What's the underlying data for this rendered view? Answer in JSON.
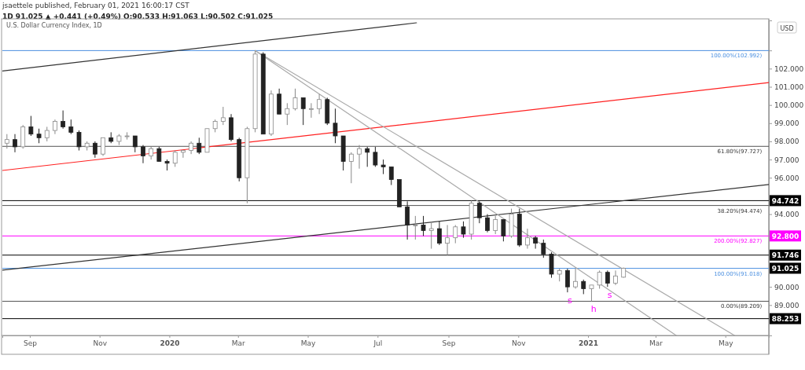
{
  "chart_data": {
    "type": "candlestick",
    "title": "U.S. Dollar Currency Index, 1D",
    "subtitle": "1D 91.025 ▲ +0.441 (+0.49%) O:90.533 H:91.063 L:90.502 C:91.025",
    "ylabel": "USD",
    "annotations": [
      "jsaettele published, February 01, 2021 16:00:17 CST",
      {
        "text": "100.00%(102.992)",
        "x": "2021-06-02",
        "y": 102.992
      },
      {
        "text": "61.80%(97.727)",
        "x": "2021-06-02",
        "y": 97.727
      },
      {
        "text": "38.20%(94.474)",
        "x": "2021-06-02",
        "y": 94.474
      },
      {
        "text": "200.00%(92.827)",
        "x": "2021-06-02",
        "y": 92.827
      },
      {
        "text": "100.00%(91.018)",
        "x": "2021-06-02",
        "y": 91.018
      },
      {
        "text": "0.00%(89.209)",
        "x": "2021-06-02",
        "y": 89.209
      },
      {
        "text": "s",
        "x": "2020-12-16",
        "y": 89.7
      },
      {
        "text": "h",
        "x": "2021-01-06",
        "y": 89.209
      },
      {
        "text": "s",
        "x": "2021-01-20",
        "y": 90.0
      },
      {
        "text": "91.025",
        "x": "2021-06-08",
        "y": 91.025
      }
    ],
    "xlim": [
      "2019-08-08",
      "2021-06-08"
    ],
    "xticks": [
      {
        "value": "2019-09-01",
        "label": "Sep"
      },
      {
        "value": "2019-11-01",
        "label": "Nov"
      },
      {
        "value": "2020-01-01",
        "label": "2020"
      },
      {
        "value": "2020-03-01",
        "label": "Mar"
      },
      {
        "value": "2020-05-01",
        "label": "May"
      },
      {
        "value": "2020-07-01",
        "label": "Jul"
      },
      {
        "value": "2020-09-01",
        "label": "Sep"
      },
      {
        "value": "2020-11-01",
        "label": "Nov"
      },
      {
        "value": "2021-01-01",
        "label": "2021"
      },
      {
        "value": "2021-03-01",
        "label": "Mar"
      },
      {
        "value": "2021-05-01",
        "label": "May"
      }
    ],
    "ylim": [
      87.33,
      104.65
    ],
    "yticks": [
      {
        "value": 89,
        "label": "89.000"
      },
      {
        "value": 90,
        "label": "90.000"
      },
      {
        "value": 91,
        "label": null
      },
      {
        "value": 92,
        "label": null
      },
      {
        "value": 93,
        "label": null
      },
      {
        "value": 94,
        "label": "94.000"
      },
      {
        "value": 95,
        "label": null
      },
      {
        "value": 96,
        "label": "96.000"
      },
      {
        "value": 97,
        "label": "97.000"
      },
      {
        "value": 98,
        "label": "98.000"
      },
      {
        "value": 99,
        "label": "99.000"
      },
      {
        "value": 100,
        "label": "100.000"
      },
      {
        "value": 101,
        "label": "101.000"
      },
      {
        "value": 102,
        "label": "102.000"
      },
      {
        "value": 103,
        "label": null
      }
    ],
    "ref_lines": [
      {
        "axis": "y",
        "value": 102.992,
        "color": "#4a8fe0"
      },
      {
        "axis": "y",
        "value": 97.727,
        "color": "#555555"
      },
      {
        "axis": "y",
        "value": 94.474,
        "color": "#555555"
      },
      {
        "axis": "y",
        "value": 91.018,
        "color": "#4a8fe0"
      },
      {
        "axis": "y",
        "value": 89.209,
        "color": "#555555"
      },
      {
        "axis": "y",
        "value": 94.742,
        "label": "94.742",
        "color": "#000000"
      },
      {
        "axis": "y",
        "value": 92.8,
        "label": "92.800",
        "color": "#ff00ff"
      },
      {
        "axis": "y",
        "value": 91.746,
        "label": "91.746",
        "color": "#000000"
      },
      {
        "axis": "y",
        "value": 88.253,
        "label": "88.253",
        "color": "#000000"
      }
    ],
    "series": [
      {
        "type": "line",
        "color": "#333333",
        "x": [
          "2019-08-08",
          "2020-08-04"
        ],
        "values": [
          101.87,
          104.52
        ]
      },
      {
        "type": "line",
        "color": "#ff2020",
        "x": [
          "2019-08-08",
          "2021-06-08"
        ],
        "values": [
          96.4,
          101.23
        ]
      },
      {
        "type": "line",
        "color": "#333333",
        "x": [
          "2019-08-08",
          "2021-06-08"
        ],
        "values": [
          90.92,
          95.63
        ]
      },
      {
        "type": "line",
        "color": "#aaaaaa",
        "x": [
          "2020-03-16",
          "2021-05-09"
        ],
        "values": [
          102.99,
          87.33
        ]
      },
      {
        "type": "line",
        "color": "#aaaaaa",
        "x": [
          "2020-03-16",
          "2021-03-19"
        ],
        "values": [
          102.99,
          87.33
        ]
      }
    ],
    "x": [
      "2019-08-12",
      "2019-08-19",
      "2019-08-26",
      "2019-09-02",
      "2019-09-09",
      "2019-09-16",
      "2019-09-23",
      "2019-09-30",
      "2019-10-07",
      "2019-10-14",
      "2019-10-21",
      "2019-10-28",
      "2019-11-04",
      "2019-11-11",
      "2019-11-18",
      "2019-11-25",
      "2019-12-02",
      "2019-12-09",
      "2019-12-16",
      "2019-12-23",
      "2019-12-30",
      "2020-01-06",
      "2020-01-13",
      "2020-01-20",
      "2020-01-27",
      "2020-02-03",
      "2020-02-10",
      "2020-02-17",
      "2020-02-24",
      "2020-03-02",
      "2020-03-09",
      "2020-03-16",
      "2020-03-23",
      "2020-03-30",
      "2020-04-06",
      "2020-04-13",
      "2020-04-20",
      "2020-04-27",
      "2020-05-04",
      "2020-05-11",
      "2020-05-18",
      "2020-05-25",
      "2020-06-01",
      "2020-06-08",
      "2020-06-15",
      "2020-06-22",
      "2020-06-29",
      "2020-07-06",
      "2020-07-13",
      "2020-07-20",
      "2020-07-27",
      "2020-08-03",
      "2020-08-10",
      "2020-08-17",
      "2020-08-24",
      "2020-08-31",
      "2020-09-07",
      "2020-09-14",
      "2020-09-21",
      "2020-09-28",
      "2020-10-05",
      "2020-10-12",
      "2020-10-19",
      "2020-10-26",
      "2020-11-02",
      "2020-11-09",
      "2020-11-16",
      "2020-11-23",
      "2020-11-30",
      "2020-12-07",
      "2020-12-14",
      "2020-12-21",
      "2020-12-28",
      "2021-01-04",
      "2021-01-11",
      "2021-01-18",
      "2021-01-25",
      "2021-02-01"
    ],
    "ohlc": [
      [
        97.9,
        98.4,
        97.6,
        98.1
      ],
      [
        98.1,
        98.4,
        97.4,
        97.7
      ],
      [
        97.7,
        98.9,
        97.6,
        98.8
      ],
      [
        98.8,
        99.4,
        98.3,
        98.4
      ],
      [
        98.4,
        98.7,
        97.9,
        98.2
      ],
      [
        98.2,
        98.8,
        98.0,
        98.6
      ],
      [
        98.6,
        99.2,
        98.4,
        99.1
      ],
      [
        99.1,
        99.7,
        98.7,
        98.8
      ],
      [
        98.8,
        99.2,
        98.4,
        98.5
      ],
      [
        98.5,
        98.6,
        97.5,
        97.7
      ],
      [
        97.7,
        98.0,
        97.5,
        97.9
      ],
      [
        97.9,
        98.0,
        97.1,
        97.3
      ],
      [
        97.3,
        98.2,
        97.2,
        98.2
      ],
      [
        98.2,
        98.5,
        97.9,
        98.0
      ],
      [
        98.0,
        98.4,
        97.8,
        98.3
      ],
      [
        98.3,
        98.5,
        98.1,
        98.3
      ],
      [
        98.3,
        98.3,
        97.4,
        97.7
      ],
      [
        97.7,
        97.8,
        96.8,
        97.2
      ],
      [
        97.2,
        97.7,
        97.0,
        97.6
      ],
      [
        97.6,
        97.7,
        96.9,
        96.9
      ],
      [
        96.9,
        97.0,
        96.4,
        96.8
      ],
      [
        96.8,
        97.5,
        96.6,
        97.4
      ],
      [
        97.4,
        97.5,
        97.1,
        97.5
      ],
      [
        97.5,
        98.0,
        97.3,
        97.9
      ],
      [
        97.9,
        98.2,
        97.3,
        97.4
      ],
      [
        97.4,
        98.7,
        97.4,
        98.7
      ],
      [
        98.7,
        99.2,
        98.5,
        99.1
      ],
      [
        99.1,
        99.9,
        98.9,
        99.3
      ],
      [
        99.3,
        99.5,
        98.0,
        98.1
      ],
      [
        98.1,
        98.2,
        95.8,
        96.0
      ],
      [
        96.0,
        98.8,
        94.6,
        98.7
      ],
      [
        98.7,
        102.99,
        98.5,
        102.8
      ],
      [
        102.8,
        102.9,
        98.4,
        98.4
      ],
      [
        98.4,
        100.8,
        98.3,
        100.6
      ],
      [
        100.6,
        100.9,
        99.5,
        99.5
      ],
      [
        99.5,
        100.1,
        98.9,
        99.8
      ],
      [
        99.8,
        100.9,
        99.7,
        100.4
      ],
      [
        100.4,
        100.4,
        98.9,
        99.8
      ],
      [
        99.8,
        100.1,
        99.3,
        99.8
      ],
      [
        99.8,
        100.6,
        99.5,
        100.3
      ],
      [
        100.3,
        100.4,
        98.9,
        99.0
      ],
      [
        99.0,
        99.8,
        97.9,
        98.3
      ],
      [
        98.3,
        98.3,
        96.4,
        96.9
      ],
      [
        96.9,
        97.4,
        95.7,
        97.3
      ],
      [
        97.3,
        97.8,
        96.5,
        97.6
      ],
      [
        97.6,
        97.7,
        96.6,
        97.4
      ],
      [
        97.4,
        97.7,
        96.6,
        96.7
      ],
      [
        96.7,
        97.0,
        96.2,
        96.6
      ],
      [
        96.6,
        96.6,
        95.6,
        95.9
      ],
      [
        95.9,
        95.9,
        94.4,
        94.4
      ],
      [
        94.4,
        94.7,
        92.6,
        93.4
      ],
      [
        93.4,
        93.9,
        92.6,
        93.4
      ],
      [
        93.4,
        93.9,
        92.8,
        93.1
      ],
      [
        93.1,
        93.6,
        92.1,
        93.2
      ],
      [
        93.2,
        93.6,
        92.3,
        92.4
      ],
      [
        92.4,
        93.4,
        91.75,
        92.7
      ],
      [
        92.7,
        93.4,
        92.4,
        93.3
      ],
      [
        93.3,
        93.6,
        92.7,
        92.9
      ],
      [
        92.9,
        94.74,
        92.6,
        94.6
      ],
      [
        94.6,
        94.7,
        93.5,
        93.8
      ],
      [
        93.8,
        94.0,
        93.0,
        93.1
      ],
      [
        93.1,
        93.9,
        92.9,
        93.7
      ],
      [
        93.7,
        93.7,
        92.5,
        92.8
      ],
      [
        92.8,
        94.3,
        92.7,
        94.0
      ],
      [
        94.0,
        94.3,
        92.2,
        92.3
      ],
      [
        92.3,
        93.2,
        92.1,
        92.7
      ],
      [
        92.7,
        92.8,
        92.1,
        92.4
      ],
      [
        92.4,
        92.6,
        91.6,
        91.8
      ],
      [
        91.8,
        91.9,
        90.5,
        90.7
      ],
      [
        90.7,
        91.0,
        90.3,
        90.9
      ],
      [
        90.9,
        91.0,
        89.7,
        90.0
      ],
      [
        90.0,
        91.018,
        89.9,
        90.3
      ],
      [
        90.3,
        90.4,
        89.6,
        89.9
      ],
      [
        89.9,
        90.1,
        89.209,
        90.1
      ],
      [
        90.1,
        90.9,
        89.9,
        90.8
      ],
      [
        90.8,
        90.9,
        90.0,
        90.2
      ],
      [
        90.2,
        90.9,
        90.1,
        90.6
      ],
      [
        90.533,
        91.063,
        90.502,
        91.025
      ]
    ]
  }
}
